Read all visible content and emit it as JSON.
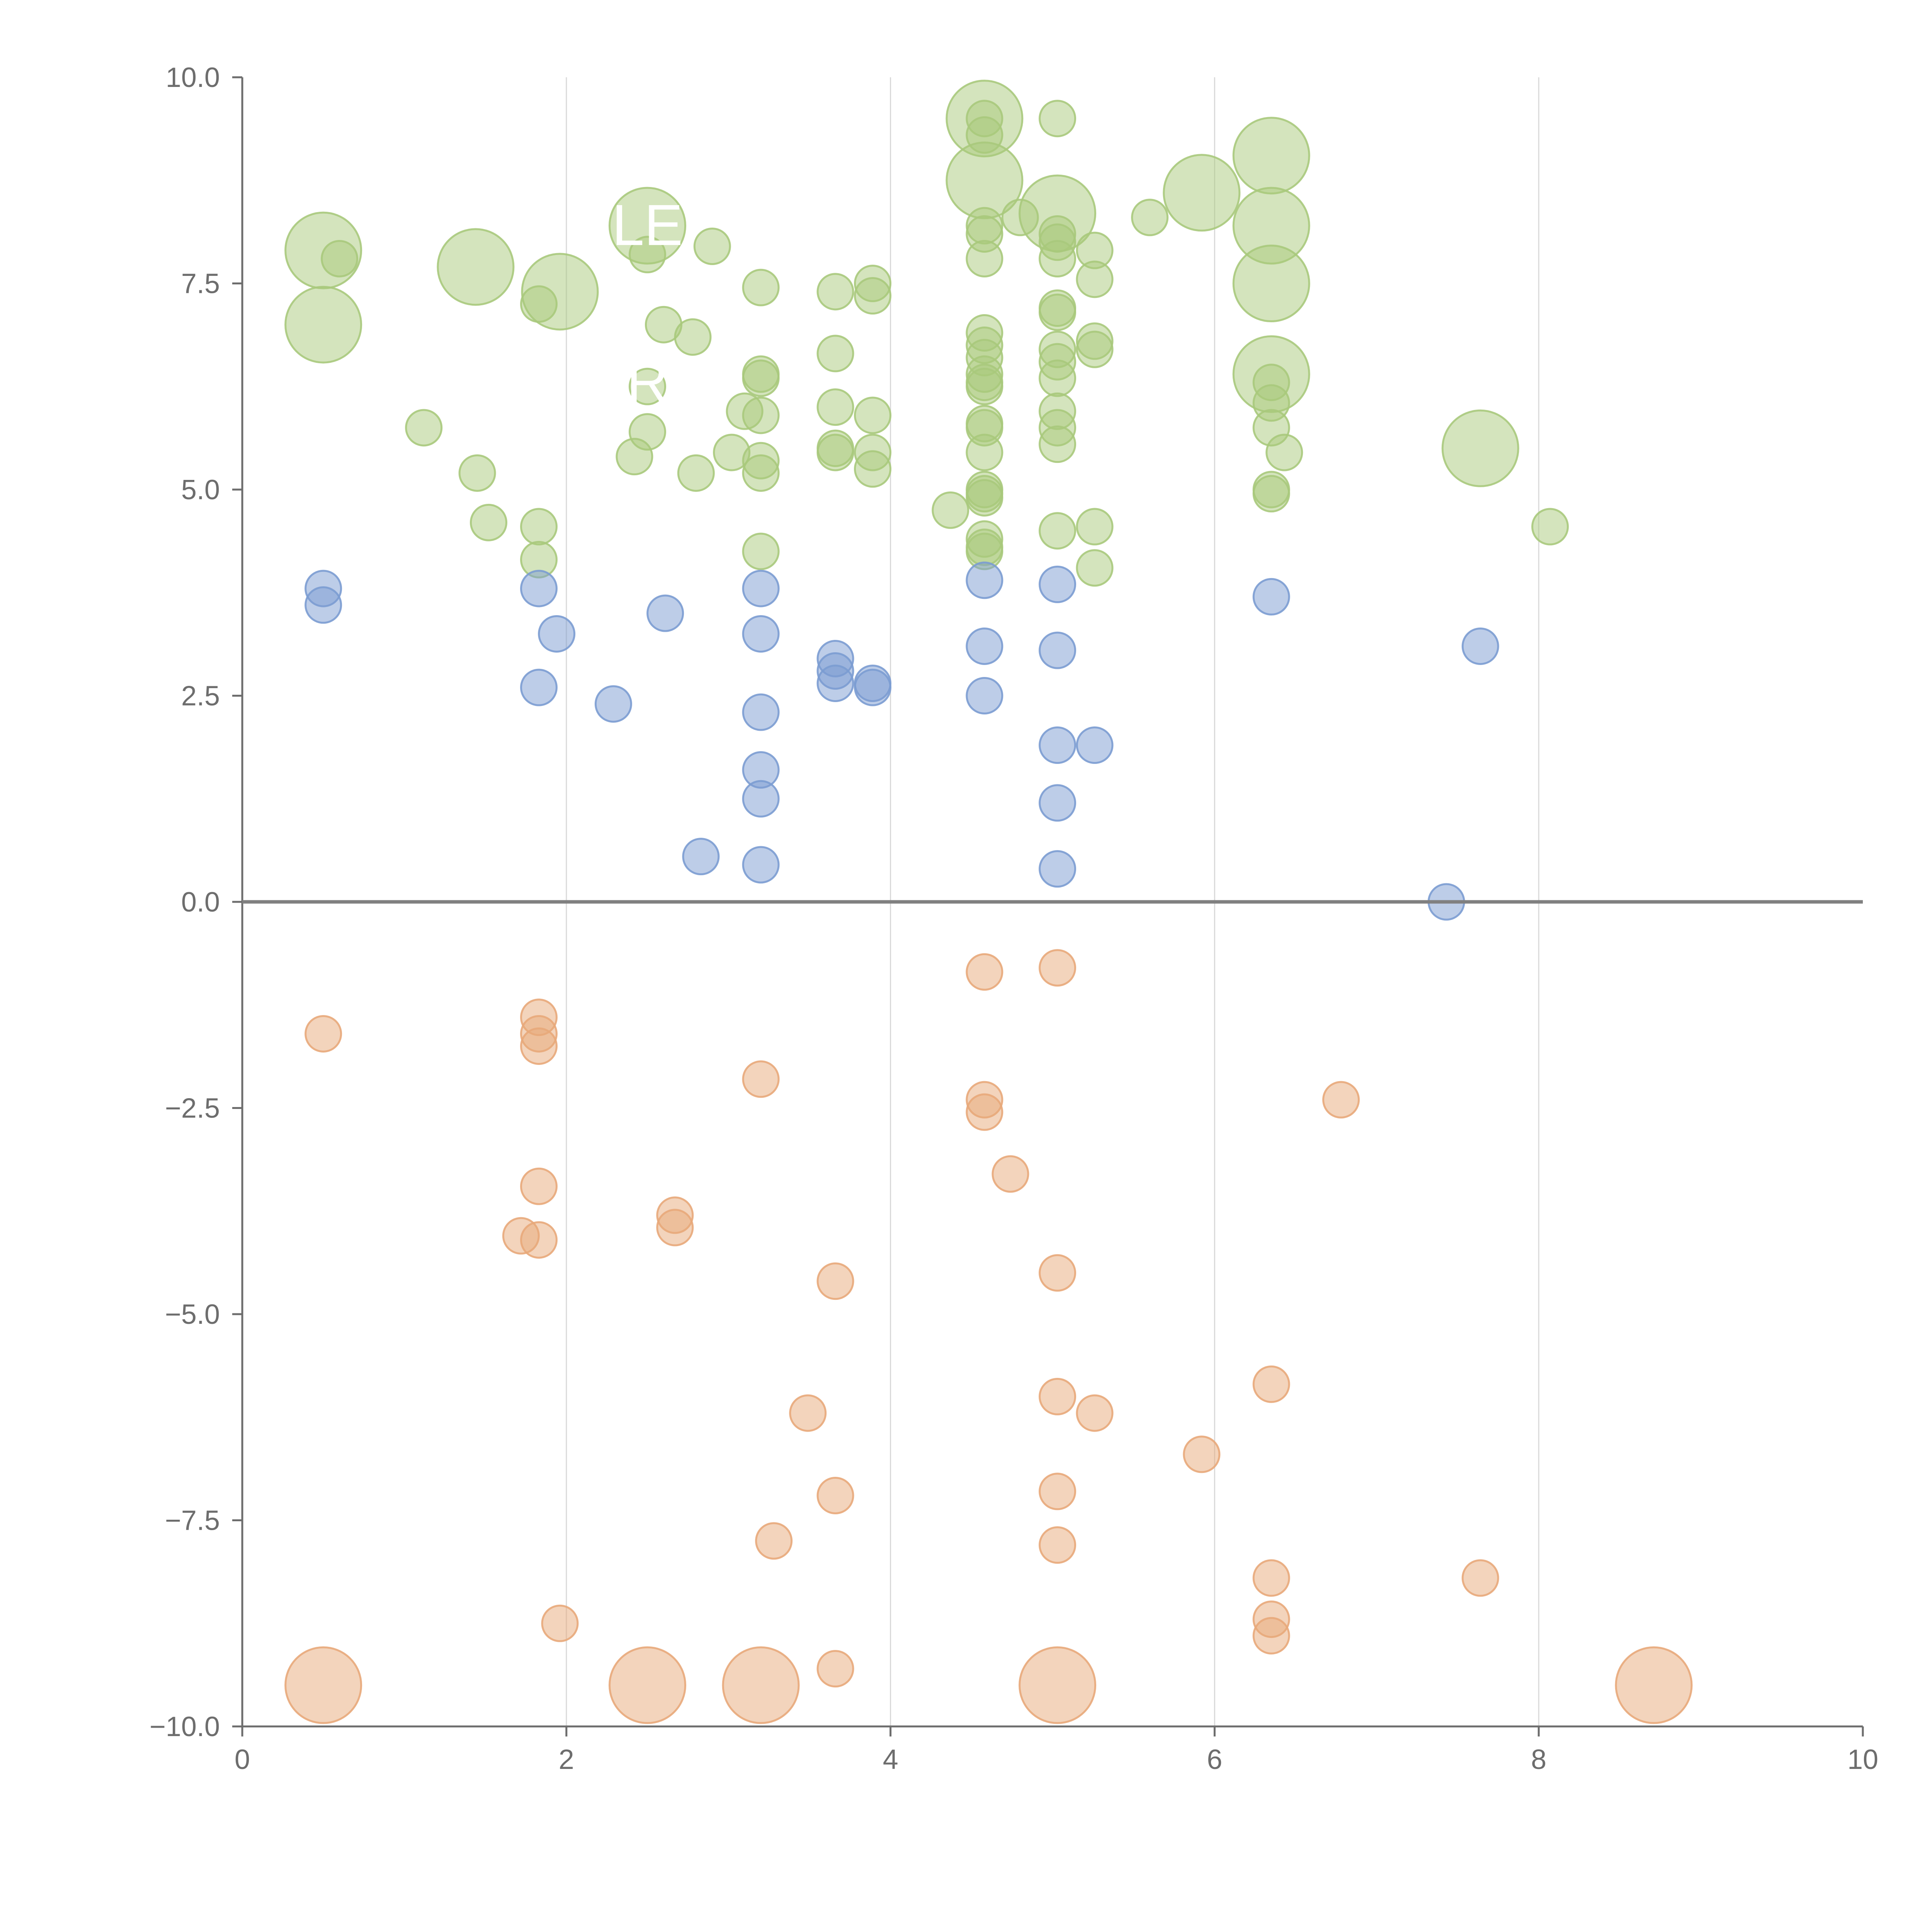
{
  "chart_data": {
    "type": "scatter",
    "title": "",
    "xlabel": "",
    "ylabel": "",
    "xlim": [
      0,
      10
    ],
    "ylim": [
      -10,
      10
    ],
    "x_ticks": [
      0,
      2,
      4,
      6,
      8,
      10
    ],
    "x_tick_labels": [
      "0",
      "2",
      "4",
      "6",
      "8",
      "10"
    ],
    "y_ticks": [
      10,
      7.5,
      5,
      2.5,
      0,
      -2.5,
      -5,
      -7.5,
      -10
    ],
    "y_tick_labels": [
      "10.0",
      "7.5",
      "5.0",
      "2.5",
      "0.0",
      "−2.5",
      "−5.0",
      "−7.5",
      "−10.0"
    ],
    "vertical_grid_at": [
      2,
      4,
      6,
      8
    ],
    "reference_line_y": 0,
    "overlay_text": [
      {
        "text": "LE",
        "x": 2.5,
        "y": 8.2
      },
      {
        "text": "R",
        "x": 2.5,
        "y": 6.3
      }
    ],
    "series": [
      {
        "name": "green",
        "color": "#a9c97c",
        "points": [
          {
            "x": 0.5,
            "y": 7.9,
            "s": 2.2
          },
          {
            "x": 0.5,
            "y": 7.0,
            "s": 2.2
          },
          {
            "x": 0.6,
            "y": 7.8,
            "s": 1
          },
          {
            "x": 1.12,
            "y": 5.75,
            "s": 1
          },
          {
            "x": 1.44,
            "y": 7.7,
            "s": 2.2
          },
          {
            "x": 1.45,
            "y": 5.2,
            "s": 1
          },
          {
            "x": 1.52,
            "y": 4.6,
            "s": 1
          },
          {
            "x": 1.83,
            "y": 7.25,
            "s": 1
          },
          {
            "x": 1.83,
            "y": 4.55,
            "s": 1
          },
          {
            "x": 1.83,
            "y": 4.15,
            "s": 1
          },
          {
            "x": 1.96,
            "y": 7.4,
            "s": 2.2
          },
          {
            "x": 2.5,
            "y": 8.2,
            "s": 2.2
          },
          {
            "x": 2.5,
            "y": 7.85,
            "s": 1
          },
          {
            "x": 2.5,
            "y": 6.25,
            "s": 1
          },
          {
            "x": 2.5,
            "y": 5.7,
            "s": 1
          },
          {
            "x": 2.42,
            "y": 5.4,
            "s": 1
          },
          {
            "x": 2.6,
            "y": 7.0,
            "s": 1
          },
          {
            "x": 2.78,
            "y": 6.85,
            "s": 1
          },
          {
            "x": 2.8,
            "y": 5.2,
            "s": 1
          },
          {
            "x": 2.9,
            "y": 7.95,
            "s": 1
          },
          {
            "x": 3.02,
            "y": 5.45,
            "s": 1
          },
          {
            "x": 3.1,
            "y": 5.95,
            "s": 1
          },
          {
            "x": 3.2,
            "y": 7.45,
            "s": 1
          },
          {
            "x": 3.2,
            "y": 6.4,
            "s": 1
          },
          {
            "x": 3.2,
            "y": 6.35,
            "s": 1
          },
          {
            "x": 3.2,
            "y": 5.9,
            "s": 1
          },
          {
            "x": 3.2,
            "y": 5.35,
            "s": 1
          },
          {
            "x": 3.2,
            "y": 5.2,
            "s": 1
          },
          {
            "x": 3.2,
            "y": 4.25,
            "s": 1
          },
          {
            "x": 3.66,
            "y": 7.4,
            "s": 1
          },
          {
            "x": 3.66,
            "y": 6.65,
            "s": 1
          },
          {
            "x": 3.66,
            "y": 6.0,
            "s": 1
          },
          {
            "x": 3.66,
            "y": 5.5,
            "s": 1
          },
          {
            "x": 3.66,
            "y": 5.45,
            "s": 1
          },
          {
            "x": 3.89,
            "y": 7.5,
            "s": 1
          },
          {
            "x": 3.89,
            "y": 7.35,
            "s": 1
          },
          {
            "x": 3.89,
            "y": 5.9,
            "s": 1
          },
          {
            "x": 3.89,
            "y": 5.45,
            "s": 1
          },
          {
            "x": 3.89,
            "y": 5.25,
            "s": 1
          },
          {
            "x": 4.37,
            "y": 4.75,
            "s": 1
          },
          {
            "x": 4.58,
            "y": 9.5,
            "s": 2.2
          },
          {
            "x": 4.58,
            "y": 9.5,
            "s": 1
          },
          {
            "x": 4.58,
            "y": 9.3,
            "s": 1
          },
          {
            "x": 4.58,
            "y": 8.75,
            "s": 2.2
          },
          {
            "x": 4.58,
            "y": 8.2,
            "s": 1
          },
          {
            "x": 4.58,
            "y": 8.1,
            "s": 1
          },
          {
            "x": 4.58,
            "y": 7.8,
            "s": 1
          },
          {
            "x": 4.58,
            "y": 6.9,
            "s": 1
          },
          {
            "x": 4.58,
            "y": 6.75,
            "s": 1
          },
          {
            "x": 4.58,
            "y": 6.6,
            "s": 1
          },
          {
            "x": 4.58,
            "y": 6.4,
            "s": 1
          },
          {
            "x": 4.58,
            "y": 6.3,
            "s": 1
          },
          {
            "x": 4.58,
            "y": 6.25,
            "s": 1
          },
          {
            "x": 4.58,
            "y": 5.8,
            "s": 1
          },
          {
            "x": 4.58,
            "y": 5.75,
            "s": 1
          },
          {
            "x": 4.58,
            "y": 5.45,
            "s": 1
          },
          {
            "x": 4.58,
            "y": 5.0,
            "s": 1
          },
          {
            "x": 4.58,
            "y": 4.95,
            "s": 1
          },
          {
            "x": 4.58,
            "y": 4.9,
            "s": 1
          },
          {
            "x": 4.58,
            "y": 4.4,
            "s": 1
          },
          {
            "x": 4.58,
            "y": 4.3,
            "s": 1
          },
          {
            "x": 4.58,
            "y": 4.25,
            "s": 1
          },
          {
            "x": 4.8,
            "y": 8.3,
            "s": 1
          },
          {
            "x": 5.03,
            "y": 8.35,
            "s": 2.2
          },
          {
            "x": 5.03,
            "y": 9.5,
            "s": 1
          },
          {
            "x": 5.03,
            "y": 8.1,
            "s": 1
          },
          {
            "x": 5.03,
            "y": 8.0,
            "s": 1
          },
          {
            "x": 5.03,
            "y": 7.8,
            "s": 1
          },
          {
            "x": 5.03,
            "y": 7.2,
            "s": 1
          },
          {
            "x": 5.03,
            "y": 7.15,
            "s": 1
          },
          {
            "x": 5.03,
            "y": 6.7,
            "s": 1
          },
          {
            "x": 5.03,
            "y": 6.55,
            "s": 1
          },
          {
            "x": 5.03,
            "y": 6.35,
            "s": 1
          },
          {
            "x": 5.03,
            "y": 5.95,
            "s": 1
          },
          {
            "x": 5.03,
            "y": 5.75,
            "s": 1
          },
          {
            "x": 5.03,
            "y": 5.55,
            "s": 1
          },
          {
            "x": 5.03,
            "y": 4.5,
            "s": 1
          },
          {
            "x": 5.26,
            "y": 7.9,
            "s": 1
          },
          {
            "x": 5.26,
            "y": 7.55,
            "s": 1
          },
          {
            "x": 5.26,
            "y": 6.8,
            "s": 1
          },
          {
            "x": 5.26,
            "y": 6.7,
            "s": 1
          },
          {
            "x": 5.26,
            "y": 4.55,
            "s": 1
          },
          {
            "x": 5.26,
            "y": 4.05,
            "s": 1
          },
          {
            "x": 5.6,
            "y": 8.3,
            "s": 1
          },
          {
            "x": 5.92,
            "y": 8.6,
            "s": 2.2
          },
          {
            "x": 6.35,
            "y": 9.05,
            "s": 2.2
          },
          {
            "x": 6.35,
            "y": 8.2,
            "s": 2.2
          },
          {
            "x": 6.35,
            "y": 7.5,
            "s": 2.2
          },
          {
            "x": 6.35,
            "y": 6.4,
            "s": 2.2
          },
          {
            "x": 6.35,
            "y": 6.3,
            "s": 1
          },
          {
            "x": 6.35,
            "y": 6.05,
            "s": 1
          },
          {
            "x": 6.35,
            "y": 5.75,
            "s": 1
          },
          {
            "x": 6.35,
            "y": 5.0,
            "s": 1
          },
          {
            "x": 6.35,
            "y": 4.95,
            "s": 1
          },
          {
            "x": 6.43,
            "y": 5.45,
            "s": 1
          },
          {
            "x": 7.64,
            "y": 5.5,
            "s": 2.2
          },
          {
            "x": 8.07,
            "y": 4.55,
            "s": 1
          }
        ]
      },
      {
        "name": "blue",
        "color": "#7b9cd1",
        "points": [
          {
            "x": 0.5,
            "y": 3.8,
            "s": 1
          },
          {
            "x": 0.5,
            "y": 3.6,
            "s": 1
          },
          {
            "x": 1.83,
            "y": 3.8,
            "s": 1
          },
          {
            "x": 1.83,
            "y": 2.6,
            "s": 1
          },
          {
            "x": 1.94,
            "y": 3.25,
            "s": 1
          },
          {
            "x": 2.29,
            "y": 2.4,
            "s": 1
          },
          {
            "x": 2.61,
            "y": 3.5,
            "s": 1
          },
          {
            "x": 2.83,
            "y": 0.55,
            "s": 1
          },
          {
            "x": 3.2,
            "y": 3.8,
            "s": 1
          },
          {
            "x": 3.2,
            "y": 3.25,
            "s": 1
          },
          {
            "x": 3.2,
            "y": 2.3,
            "s": 1
          },
          {
            "x": 3.2,
            "y": 1.6,
            "s": 1
          },
          {
            "x": 3.2,
            "y": 1.25,
            "s": 1
          },
          {
            "x": 3.2,
            "y": 0.45,
            "s": 1
          },
          {
            "x": 3.66,
            "y": 2.95,
            "s": 1
          },
          {
            "x": 3.66,
            "y": 2.8,
            "s": 1
          },
          {
            "x": 3.66,
            "y": 2.65,
            "s": 1
          },
          {
            "x": 3.89,
            "y": 2.65,
            "s": 1
          },
          {
            "x": 3.89,
            "y": 2.6,
            "s": 1
          },
          {
            "x": 4.58,
            "y": 3.9,
            "s": 1
          },
          {
            "x": 4.58,
            "y": 3.1,
            "s": 1
          },
          {
            "x": 4.58,
            "y": 2.5,
            "s": 1
          },
          {
            "x": 5.03,
            "y": 3.85,
            "s": 1
          },
          {
            "x": 5.03,
            "y": 3.05,
            "s": 1
          },
          {
            "x": 5.03,
            "y": 1.9,
            "s": 1
          },
          {
            "x": 5.03,
            "y": 1.2,
            "s": 1
          },
          {
            "x": 5.03,
            "y": 0.4,
            "s": 1
          },
          {
            "x": 5.26,
            "y": 1.9,
            "s": 1
          },
          {
            "x": 6.35,
            "y": 3.7,
            "s": 1
          },
          {
            "x": 7.43,
            "y": 0.0,
            "s": 1
          },
          {
            "x": 7.64,
            "y": 3.1,
            "s": 1
          }
        ]
      },
      {
        "name": "orange",
        "color": "#e8a97a",
        "points": [
          {
            "x": 0.5,
            "y": -1.6,
            "s": 1
          },
          {
            "x": 0.5,
            "y": -9.5,
            "s": 2.2
          },
          {
            "x": 1.72,
            "y": -4.05,
            "s": 1
          },
          {
            "x": 1.83,
            "y": -1.4,
            "s": 1
          },
          {
            "x": 1.83,
            "y": -1.6,
            "s": 1
          },
          {
            "x": 1.83,
            "y": -1.75,
            "s": 1
          },
          {
            "x": 1.83,
            "y": -3.45,
            "s": 1
          },
          {
            "x": 1.83,
            "y": -4.1,
            "s": 1
          },
          {
            "x": 1.96,
            "y": -8.75,
            "s": 1
          },
          {
            "x": 2.5,
            "y": -9.5,
            "s": 2.2
          },
          {
            "x": 2.67,
            "y": -3.8,
            "s": 1
          },
          {
            "x": 2.67,
            "y": -3.95,
            "s": 1
          },
          {
            "x": 3.2,
            "y": -2.15,
            "s": 1
          },
          {
            "x": 3.2,
            "y": -9.5,
            "s": 2.2
          },
          {
            "x": 3.28,
            "y": -7.75,
            "s": 1
          },
          {
            "x": 3.49,
            "y": -6.2,
            "s": 1
          },
          {
            "x": 3.66,
            "y": -4.6,
            "s": 1
          },
          {
            "x": 3.66,
            "y": -7.2,
            "s": 1
          },
          {
            "x": 3.66,
            "y": -9.3,
            "s": 1
          },
          {
            "x": 4.58,
            "y": -0.85,
            "s": 1
          },
          {
            "x": 4.58,
            "y": -2.4,
            "s": 1
          },
          {
            "x": 4.58,
            "y": -2.55,
            "s": 1
          },
          {
            "x": 4.74,
            "y": -3.3,
            "s": 1
          },
          {
            "x": 5.03,
            "y": -0.8,
            "s": 1
          },
          {
            "x": 5.03,
            "y": -4.5,
            "s": 1
          },
          {
            "x": 5.03,
            "y": -6.0,
            "s": 1
          },
          {
            "x": 5.03,
            "y": -7.15,
            "s": 1
          },
          {
            "x": 5.03,
            "y": -7.8,
            "s": 1
          },
          {
            "x": 5.03,
            "y": -9.5,
            "s": 2.2
          },
          {
            "x": 5.26,
            "y": -6.2,
            "s": 1
          },
          {
            "x": 5.92,
            "y": -6.7,
            "s": 1
          },
          {
            "x": 6.35,
            "y": -5.85,
            "s": 1
          },
          {
            "x": 6.35,
            "y": -8.2,
            "s": 1
          },
          {
            "x": 6.35,
            "y": -8.7,
            "s": 1
          },
          {
            "x": 6.35,
            "y": -8.9,
            "s": 1
          },
          {
            "x": 6.78,
            "y": -2.4,
            "s": 1
          },
          {
            "x": 7.64,
            "y": -8.2,
            "s": 1
          },
          {
            "x": 8.71,
            "y": -9.5,
            "s": 2.2
          }
        ]
      }
    ]
  }
}
